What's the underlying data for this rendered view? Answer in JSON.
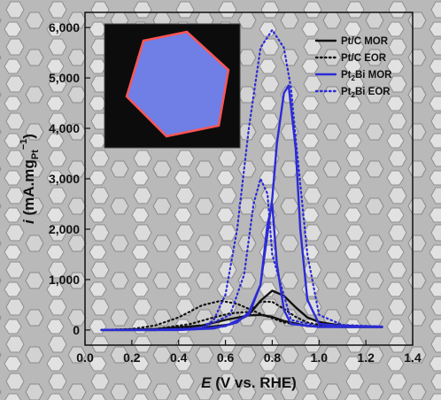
{
  "chart_data": {
    "type": "line",
    "x_axis": {
      "label_symbol": "E",
      "label_rest": " (V vs. RHE)",
      "range": [
        0.0,
        1.4
      ],
      "ticks": [
        "0.0",
        "0.2",
        "0.4",
        "0.6",
        "0.8",
        "1.0",
        "1.2",
        "1.4"
      ]
    },
    "y_axis": {
      "label_symbol": "i",
      "label_rest": " (mA.mg",
      "label_sub": "Pt",
      "label_sup": "−1",
      "label_close": ")",
      "range": [
        -300,
        6300
      ],
      "ticks": [
        "0",
        "1,000",
        "2,000",
        "3,000",
        "4,000",
        "5,000",
        "6,000"
      ]
    },
    "grid": false,
    "legend_position": "top-right",
    "background": "SEM image of hexagonal nanoplates",
    "inset": "hexagonal nanoplate elemental map (blue with red edge)",
    "series": [
      {
        "name": "Pt/C MOR",
        "legend_main": "Pt/C MOR",
        "legend_sub": "",
        "legend_rest": "",
        "color": "#111111",
        "dash": "solid",
        "x": [
          0.07,
          0.3,
          0.5,
          0.62,
          0.7,
          0.75,
          0.8,
          0.85,
          0.9,
          0.95,
          1.0,
          1.05,
          1.1,
          1.2,
          1.27
        ],
        "y": [
          0,
          0,
          40,
          110,
          300,
          580,
          780,
          680,
          450,
          250,
          160,
          120,
          90,
          70,
          60
        ],
        "x_return": [
          1.27,
          1.1,
          0.95,
          0.85,
          0.8,
          0.75,
          0.7,
          0.6,
          0.5,
          0.3,
          0.07
        ],
        "y_return": [
          60,
          60,
          80,
          180,
          260,
          300,
          290,
          200,
          90,
          20,
          0
        ]
      },
      {
        "name": "Pt/C EOR",
        "legend_main": "Pt/C EOR",
        "legend_sub": "",
        "legend_rest": "",
        "color": "#111111",
        "dash": "dotted",
        "x": [
          0.07,
          0.3,
          0.45,
          0.55,
          0.62,
          0.7,
          0.75,
          0.8,
          0.85,
          0.9,
          0.95,
          1.0,
          1.1,
          1.27
        ],
        "y": [
          0,
          20,
          120,
          250,
          330,
          360,
          560,
          560,
          420,
          260,
          150,
          100,
          70,
          60
        ],
        "x_return": [
          1.27,
          1.1,
          0.95,
          0.85,
          0.75,
          0.65,
          0.58,
          0.5,
          0.4,
          0.3,
          0.2,
          0.07
        ],
        "y_return": [
          60,
          60,
          80,
          150,
          320,
          520,
          580,
          490,
          250,
          90,
          20,
          0
        ]
      },
      {
        "name": "Pt2Bi MOR",
        "legend_main": "Pt",
        "legend_sub": "2",
        "legend_rest": "Bi MOR",
        "color": "#2b2bd6",
        "dash": "solid",
        "x": [
          0.07,
          0.4,
          0.55,
          0.65,
          0.7,
          0.75,
          0.8,
          0.82,
          0.85,
          0.87,
          0.9,
          0.92,
          0.95,
          1.0,
          1.1,
          1.27
        ],
        "y": [
          0,
          0,
          30,
          150,
          350,
          900,
          2600,
          3700,
          4700,
          4850,
          3600,
          2000,
          600,
          120,
          80,
          60
        ],
        "x_return": [
          1.27,
          1.0,
          0.88,
          0.85,
          0.82,
          0.8,
          0.78,
          0.75,
          0.7,
          0.6,
          0.5,
          0.3,
          0.07
        ],
        "y_return": [
          60,
          60,
          120,
          400,
          1300,
          2500,
          2100,
          900,
          300,
          80,
          20,
          5,
          0
        ]
      },
      {
        "name": "Pt2Bi EOR",
        "legend_main": "Pt",
        "legend_sub": "2",
        "legend_rest": "Bi EOR",
        "color": "#2b2bd6",
        "dash": "dotted",
        "x": [
          0.07,
          0.4,
          0.5,
          0.55,
          0.6,
          0.65,
          0.7,
          0.75,
          0.8,
          0.85,
          0.88,
          0.9,
          0.95,
          1.0,
          1.1,
          1.27
        ],
        "y": [
          0,
          0,
          50,
          200,
          700,
          2000,
          4000,
          5600,
          5950,
          5600,
          4800,
          3800,
          1500,
          300,
          100,
          70
        ],
        "x_return": [
          1.27,
          1.0,
          0.88,
          0.8,
          0.78,
          0.75,
          0.72,
          0.68,
          0.62,
          0.5,
          0.3,
          0.07
        ],
        "y_return": [
          70,
          70,
          200,
          1500,
          2700,
          3000,
          2500,
          1100,
          300,
          40,
          5,
          0
        ]
      }
    ]
  }
}
